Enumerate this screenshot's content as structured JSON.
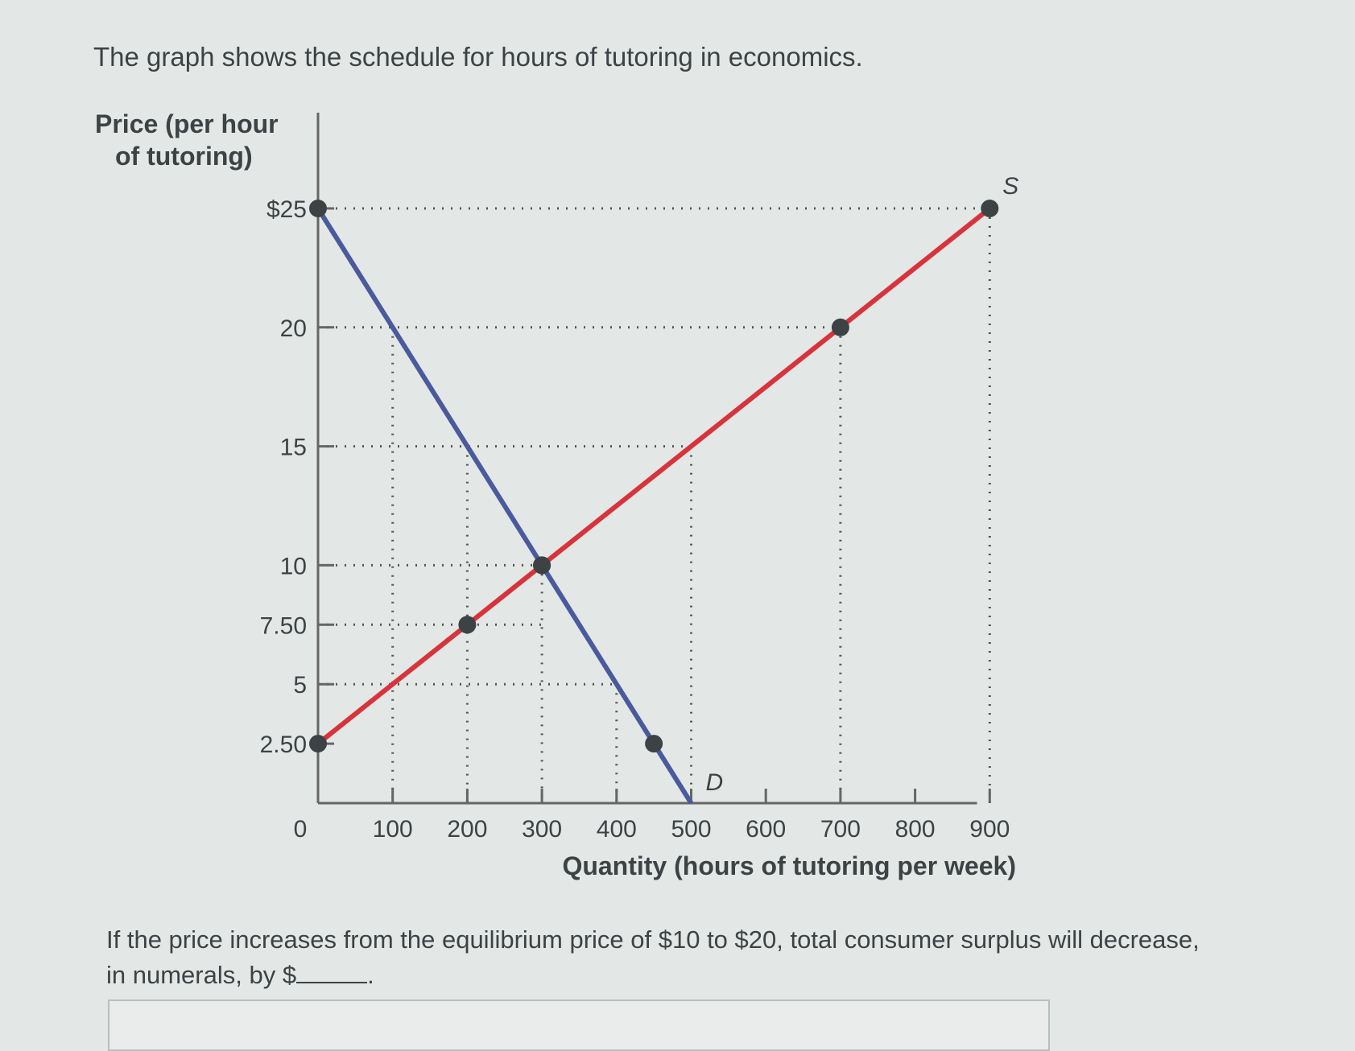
{
  "prompt": "The graph shows the schedule for hours of tutoring in economics.",
  "question_before": "If the price increases from the equilibrium price of $10 to $20, total consumer surplus will decrease, in numerals, by $",
  "question_after": ".",
  "chart_data": {
    "type": "line",
    "ylabel_line1": "Price (per hour",
    "ylabel_line2": "of tutoring)",
    "xlabel": "Quantity (hours of tutoring per week)",
    "xlim": [
      0,
      950
    ],
    "ylim": [
      0,
      27
    ],
    "x_ticks": [
      0,
      100,
      200,
      300,
      400,
      500,
      600,
      700,
      800,
      900
    ],
    "x_tick_labels": [
      "0",
      "100",
      "200",
      "300",
      "400",
      "500",
      "600",
      "700",
      "800",
      "900"
    ],
    "y_ticks": [
      2.5,
      5,
      7.5,
      10,
      15,
      20,
      25
    ],
    "y_tick_labels": [
      "2.50",
      "5",
      "7.50",
      "10",
      "15",
      "20",
      "$25"
    ],
    "series": [
      {
        "name": "S",
        "color": "#d8333c",
        "x": [
          0,
          900
        ],
        "y": [
          2.5,
          25
        ],
        "points_x": [
          0,
          200,
          300,
          700,
          900
        ],
        "points_y": [
          2.5,
          7.5,
          10,
          20,
          25
        ]
      },
      {
        "name": "D",
        "color": "#4a5a9c",
        "x": [
          0,
          500
        ],
        "y": [
          25,
          0
        ],
        "points_x": [
          0,
          300,
          450
        ],
        "points_y": [
          25,
          10,
          2.5
        ]
      }
    ],
    "guides_h": [
      [
        25,
        900
      ],
      [
        20,
        700
      ],
      [
        15,
        500
      ],
      [
        10,
        300
      ],
      [
        7.5,
        300
      ],
      [
        5,
        400
      ]
    ],
    "guides_v": [
      [
        100,
        20
      ],
      [
        200,
        15
      ],
      [
        300,
        10
      ],
      [
        400,
        5
      ],
      [
        500,
        15
      ],
      [
        700,
        20
      ],
      [
        900,
        25
      ]
    ]
  }
}
